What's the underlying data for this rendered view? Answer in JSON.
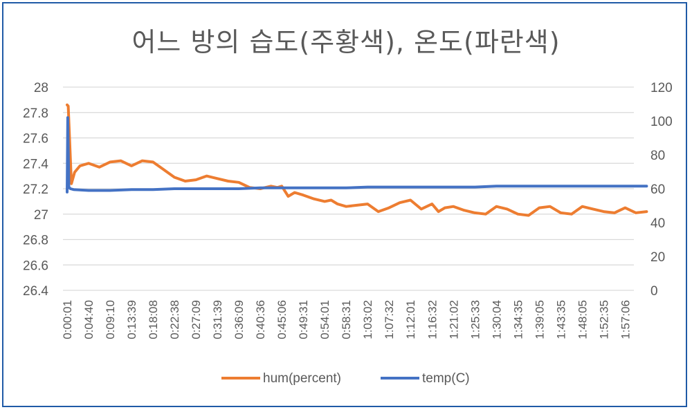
{
  "chart_data": {
    "type": "line",
    "title": "어느 방의 습도(주황색), 온도(파란색)",
    "y_left": {
      "ylim": [
        26.4,
        28
      ],
      "ticks": [
        "28",
        "27.8",
        "27.6",
        "27.4",
        "27.2",
        "27",
        "26.8",
        "26.6",
        "26.4"
      ]
    },
    "y_right": {
      "ylim": [
        0,
        120
      ],
      "ticks": [
        "120",
        "100",
        "80",
        "60",
        "40",
        "20",
        "0"
      ]
    },
    "x_ticks": [
      "0:00:01",
      "0:04:40",
      "0:09:10",
      "0:13:39",
      "0:18:08",
      "0:22:38",
      "0:27:09",
      "0:31:39",
      "0:36:09",
      "0:40:36",
      "0:45:06",
      "0:49:31",
      "0:54:01",
      "0:58:31",
      "1:03:02",
      "1:07:32",
      "1:12:01",
      "1:16:32",
      "1:21:02",
      "1:25:33",
      "1:30:04",
      "1:34:35",
      "1:39:05",
      "1:43:35",
      "1:48:05",
      "1:52:35",
      "1:57:06"
    ],
    "grid": true,
    "legend": "bottom",
    "series": [
      {
        "name": "hum(percent)",
        "axis": "left",
        "color": "#ed7d31",
        "x": [
          0,
          0.05,
          0.2,
          0.35,
          0.6,
          1.0,
          1.5,
          2.0,
          2.5,
          3.0,
          3.5,
          4.0,
          4.5,
          5.0,
          5.5,
          6.0,
          6.5,
          7.0,
          7.5,
          8.0,
          8.5,
          9.0,
          9.5,
          9.8,
          10.0,
          10.3,
          10.6,
          11.0,
          11.5,
          12.0,
          12.3,
          12.6,
          13.0,
          13.5,
          14.0,
          14.5,
          15.0,
          15.5,
          16.0,
          16.5,
          17.0,
          17.3,
          17.6,
          18.0,
          18.5,
          19.0,
          19.5,
          20.0,
          20.5,
          21.0,
          21.5,
          22.0,
          22.5,
          23.0,
          23.5,
          24.0,
          24.5,
          25.0,
          25.5,
          26.0,
          26.5,
          27.0
        ],
        "values": [
          27.86,
          27.85,
          27.24,
          27.33,
          27.38,
          27.4,
          27.37,
          27.41,
          27.42,
          27.38,
          27.42,
          27.41,
          27.35,
          27.29,
          27.26,
          27.27,
          27.3,
          27.28,
          27.26,
          27.25,
          27.21,
          27.2,
          27.22,
          27.21,
          27.22,
          27.14,
          27.17,
          27.15,
          27.12,
          27.1,
          27.11,
          27.08,
          27.06,
          27.07,
          27.08,
          27.02,
          27.05,
          27.09,
          27.11,
          27.04,
          27.08,
          27.02,
          27.05,
          27.06,
          27.03,
          27.01,
          27.0,
          27.06,
          27.04,
          27.0,
          26.99,
          27.05,
          27.06,
          27.01,
          27.0,
          27.06,
          27.04,
          27.02,
          27.01,
          27.05,
          27.01,
          27.02
        ]
      },
      {
        "name": "temp(C)",
        "axis": "right",
        "color": "#4472c4",
        "x": [
          0,
          0.03,
          0.08,
          0.15,
          0.3,
          1.0,
          2.0,
          3.0,
          4.0,
          5.0,
          6.0,
          7.0,
          8.0,
          9.0,
          10.0,
          11.0,
          12.0,
          13.0,
          14.0,
          15.0,
          16.0,
          17.0,
          18.0,
          19.0,
          20.0,
          21.0,
          22.0,
          23.0,
          24.0,
          25.0,
          26.0,
          27.0
        ],
        "values": [
          58,
          102,
          61,
          60,
          59.5,
          59.0,
          59.0,
          59.5,
          59.5,
          60.0,
          60.0,
          60.0,
          60.0,
          60.5,
          60.5,
          60.5,
          60.5,
          60.5,
          61.0,
          61.0,
          61.0,
          61.0,
          61.0,
          61.0,
          61.5,
          61.5,
          61.5,
          61.5,
          61.5,
          61.5,
          61.5,
          61.5
        ]
      }
    ]
  }
}
